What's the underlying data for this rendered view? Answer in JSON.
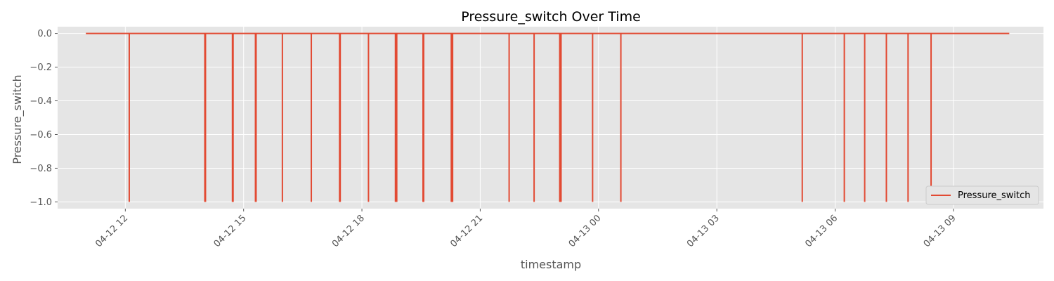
{
  "chart_data": {
    "type": "line",
    "title": "Pressure_switch Over Time",
    "xlabel": "timestamp",
    "ylabel": "Pressure_switch",
    "ylim": [
      -1.04,
      0.04
    ],
    "y_ticks": [
      0.0,
      -0.2,
      -0.4,
      -0.6,
      -0.8,
      -1.0
    ],
    "y_tick_labels": [
      "0.0",
      "−0.2",
      "−0.4",
      "−0.6",
      "−0.8",
      "−1.0"
    ],
    "x_range": [
      "2025-04-12T10:17",
      "2025-04-13T11:17"
    ],
    "x_ticks": [
      "2025-04-12T12:00",
      "2025-04-12T15:00",
      "2025-04-12T18:00",
      "2025-04-12T21:00",
      "2025-04-13T00:00",
      "2025-04-13T03:00",
      "2025-04-13T06:00",
      "2025-04-13T09:00"
    ],
    "x_tick_labels": [
      "04-12 12",
      "04-12 15",
      "04-12 18",
      "04-12 21",
      "04-13 00",
      "04-13 03",
      "04-13 06",
      "04-13 09"
    ],
    "grid": true,
    "legend_position": "lower-right",
    "series": [
      {
        "name": "Pressure_switch",
        "color": "#e24a33",
        "baseline": 0.0,
        "start": "2025-04-12T11:00",
        "end": "2025-04-13T10:25",
        "drops": [
          {
            "time": "2025-04-12T12:06",
            "value": -1.0
          },
          {
            "time": "2025-04-12T14:01",
            "value": -1.0
          },
          {
            "time": "2025-04-12T14:02",
            "value": -1.0
          },
          {
            "time": "2025-04-12T14:43",
            "value": -1.0
          },
          {
            "time": "2025-04-12T14:44",
            "value": -1.0
          },
          {
            "time": "2025-04-12T15:18",
            "value": -1.0
          },
          {
            "time": "2025-04-12T15:19",
            "value": -1.0
          },
          {
            "time": "2025-04-12T15:59",
            "value": -1.0
          },
          {
            "time": "2025-04-12T16:43",
            "value": -1.0
          },
          {
            "time": "2025-04-12T17:26",
            "value": -1.0
          },
          {
            "time": "2025-04-12T17:27",
            "value": -1.0
          },
          {
            "time": "2025-04-12T18:10",
            "value": -1.0
          },
          {
            "time": "2025-04-12T18:51",
            "value": -1.0
          },
          {
            "time": "2025-04-12T18:52",
            "value": -1.0
          },
          {
            "time": "2025-04-12T18:53",
            "value": -1.0
          },
          {
            "time": "2025-04-12T19:33",
            "value": -1.0
          },
          {
            "time": "2025-04-12T19:34",
            "value": -1.0
          },
          {
            "time": "2025-04-12T20:16",
            "value": -1.0
          },
          {
            "time": "2025-04-12T20:17",
            "value": -1.0
          },
          {
            "time": "2025-04-12T20:18",
            "value": -1.0
          },
          {
            "time": "2025-04-12T21:44",
            "value": -1.0
          },
          {
            "time": "2025-04-12T22:22",
            "value": -1.0
          },
          {
            "time": "2025-04-12T23:01",
            "value": -1.0
          },
          {
            "time": "2025-04-12T23:02",
            "value": -1.0
          },
          {
            "time": "2025-04-12T23:03",
            "value": -1.0
          },
          {
            "time": "2025-04-12T23:51",
            "value": -1.0
          },
          {
            "time": "2025-04-13T00:34",
            "value": -1.0
          },
          {
            "time": "2025-04-13T05:10",
            "value": -1.0
          },
          {
            "time": "2025-04-13T06:14",
            "value": -1.0
          },
          {
            "time": "2025-04-13T06:45",
            "value": -1.0
          },
          {
            "time": "2025-04-13T07:18",
            "value": -1.0
          },
          {
            "time": "2025-04-13T07:51",
            "value": -1.0
          },
          {
            "time": "2025-04-13T08:26",
            "value": -1.0
          }
        ]
      }
    ]
  }
}
